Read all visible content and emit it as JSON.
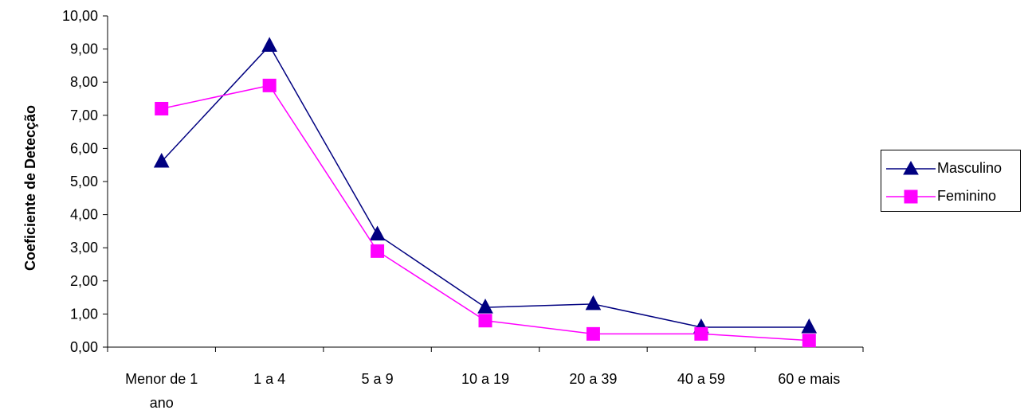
{
  "chart_data": {
    "type": "line",
    "categories": [
      [
        "Menor de 1",
        "ano"
      ],
      [
        "1 a 4"
      ],
      [
        "5 a 9"
      ],
      [
        "10 a 19"
      ],
      [
        "20 a 39"
      ],
      [
        "40 a 59"
      ],
      [
        "60 e mais"
      ]
    ],
    "series": [
      {
        "name": "Masculino",
        "values": [
          5.6,
          9.1,
          3.4,
          1.2,
          1.3,
          0.6,
          0.6
        ],
        "color": "#000080",
        "marker": "triangle"
      },
      {
        "name": "Feminino",
        "values": [
          7.2,
          7.9,
          2.9,
          0.8,
          0.4,
          0.4,
          0.2
        ],
        "color": "#ff00ff",
        "marker": "square"
      }
    ],
    "ylabel": "Coeficiente de Detecção",
    "yticks": [
      "0,00",
      "1,00",
      "2,00",
      "3,00",
      "4,00",
      "5,00",
      "6,00",
      "7,00",
      "8,00",
      "9,00",
      "10,00"
    ],
    "ylim": [
      0,
      10
    ],
    "grid": false,
    "legend_position": "right"
  }
}
